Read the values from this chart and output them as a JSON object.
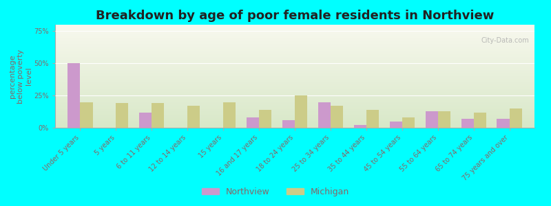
{
  "title": "Breakdown by age of poor female residents in Northview",
  "ylabel": "percentage\nbelow poverty\nlevel",
  "categories": [
    "Under 5 years",
    "5 years",
    "6 to 11 years",
    "12 to 14 years",
    "15 years",
    "16 and 17 years",
    "18 to 24 years",
    "25 to 34 years",
    "35 to 44 years",
    "45 to 54 years",
    "55 to 64 years",
    "65 to 74 years",
    "75 years and over"
  ],
  "northview_values": [
    50,
    0,
    12,
    0,
    0,
    8,
    6,
    20,
    2,
    5,
    13,
    7,
    7
  ],
  "michigan_values": [
    20,
    19,
    19,
    17,
    20,
    14,
    25,
    17,
    14,
    8,
    13,
    12,
    15
  ],
  "northview_color": "#cc99cc",
  "michigan_color": "#cccc88",
  "outer_background": "#00ffff",
  "ylim": [
    0,
    80
  ],
  "yticks": [
    0,
    25,
    50,
    75
  ],
  "ytick_labels": [
    "0%",
    "25%",
    "50%",
    "75%"
  ],
  "title_fontsize": 13,
  "axis_label_fontsize": 8,
  "tick_label_fontsize": 7,
  "legend_fontsize": 9,
  "bar_width": 0.35,
  "label_color": "#886666",
  "watermark": "City-Data.com"
}
